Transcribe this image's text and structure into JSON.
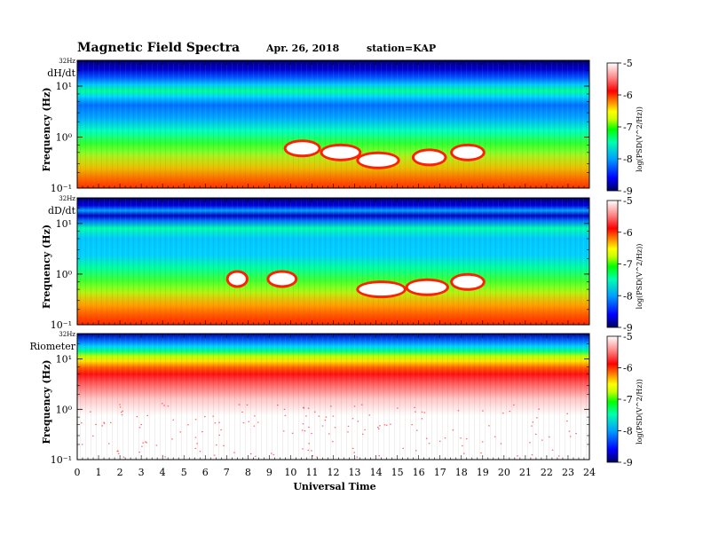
{
  "figure": {
    "title": "Magnetic  Field  Spectra",
    "date": "Apr. 26, 2018",
    "station": "station=KAP"
  },
  "colors": {
    "scale": [
      "#000080",
      "#0000ff",
      "#00a0ff",
      "#00ffb0",
      "#00ff00",
      "#c8ff00",
      "#ffff00",
      "#ff8000",
      "#ff0000",
      "#ffffff"
    ]
  },
  "chart_data": [
    {
      "type": "heatmap",
      "panel_label": "dH/dt",
      "ylabel": "Frequency  (Hz)",
      "y_top_label": "32Hz",
      "y_ticks": [
        "10¹",
        "10⁰",
        "10⁻¹"
      ],
      "y_scale": "log",
      "ylim": [
        0.1,
        32
      ],
      "xlim": [
        0,
        24
      ],
      "colorbar": {
        "label": "log(PSD(V^2/Hz))",
        "ticks": [
          "-5",
          "-6",
          "-7",
          "-8",
          "-9"
        ],
        "range": [
          -9,
          -5
        ]
      },
      "intense_bursts": [
        {
          "t_start": 9.8,
          "t_end": 11.3,
          "f_hz": 0.6
        },
        {
          "t_start": 11.5,
          "t_end": 13.2,
          "f_hz": 0.5
        },
        {
          "t_start": 13.2,
          "t_end": 15.0,
          "f_hz": 0.35
        },
        {
          "t_start": 15.8,
          "t_end": 17.2,
          "f_hz": 0.4
        },
        {
          "t_start": 17.6,
          "t_end": 19.0,
          "f_hz": 0.5
        }
      ]
    },
    {
      "type": "heatmap",
      "panel_label": "dD/dt",
      "ylabel": "Frequency  (Hz)",
      "y_top_label": "32Hz",
      "y_ticks": [
        "10¹",
        "10⁰",
        "10⁻¹"
      ],
      "y_scale": "log",
      "ylim": [
        0.1,
        32
      ],
      "xlim": [
        0,
        24
      ],
      "colorbar": {
        "label": "log(PSD(V^2/Hz))",
        "ticks": [
          "-5",
          "-6",
          "-7",
          "-8",
          "-9"
        ],
        "range": [
          -9,
          -5
        ]
      },
      "intense_bursts": [
        {
          "t_start": 7.1,
          "t_end": 7.9,
          "f_hz": 0.8
        },
        {
          "t_start": 9.0,
          "t_end": 10.2,
          "f_hz": 0.8
        },
        {
          "t_start": 13.2,
          "t_end": 15.3,
          "f_hz": 0.5
        },
        {
          "t_start": 15.5,
          "t_end": 17.3,
          "f_hz": 0.55
        },
        {
          "t_start": 17.6,
          "t_end": 19.0,
          "f_hz": 0.7
        }
      ]
    },
    {
      "type": "heatmap",
      "panel_label": "Riometer",
      "ylabel": "Frequency  (Hz)",
      "y_top_label": "32Hz",
      "y_ticks": [
        "10¹",
        "10⁰",
        "10⁻¹"
      ],
      "y_scale": "log",
      "ylim": [
        0.1,
        32
      ],
      "xlim": [
        0,
        24
      ],
      "colorbar": {
        "label": "log(PSD(V^2/Hz))",
        "ticks": [
          "-5",
          "-6",
          "-7",
          "-8",
          "-9"
        ],
        "range": [
          -9,
          -5
        ]
      },
      "intense_bursts": []
    }
  ],
  "x_axis": {
    "label": "Universal  Time",
    "ticks": [
      "0",
      "1",
      "2",
      "3",
      "4",
      "5",
      "6",
      "7",
      "8",
      "9",
      "10",
      "11",
      "12",
      "13",
      "14",
      "15",
      "16",
      "17",
      "18",
      "19",
      "20",
      "21",
      "22",
      "23",
      "24"
    ]
  }
}
